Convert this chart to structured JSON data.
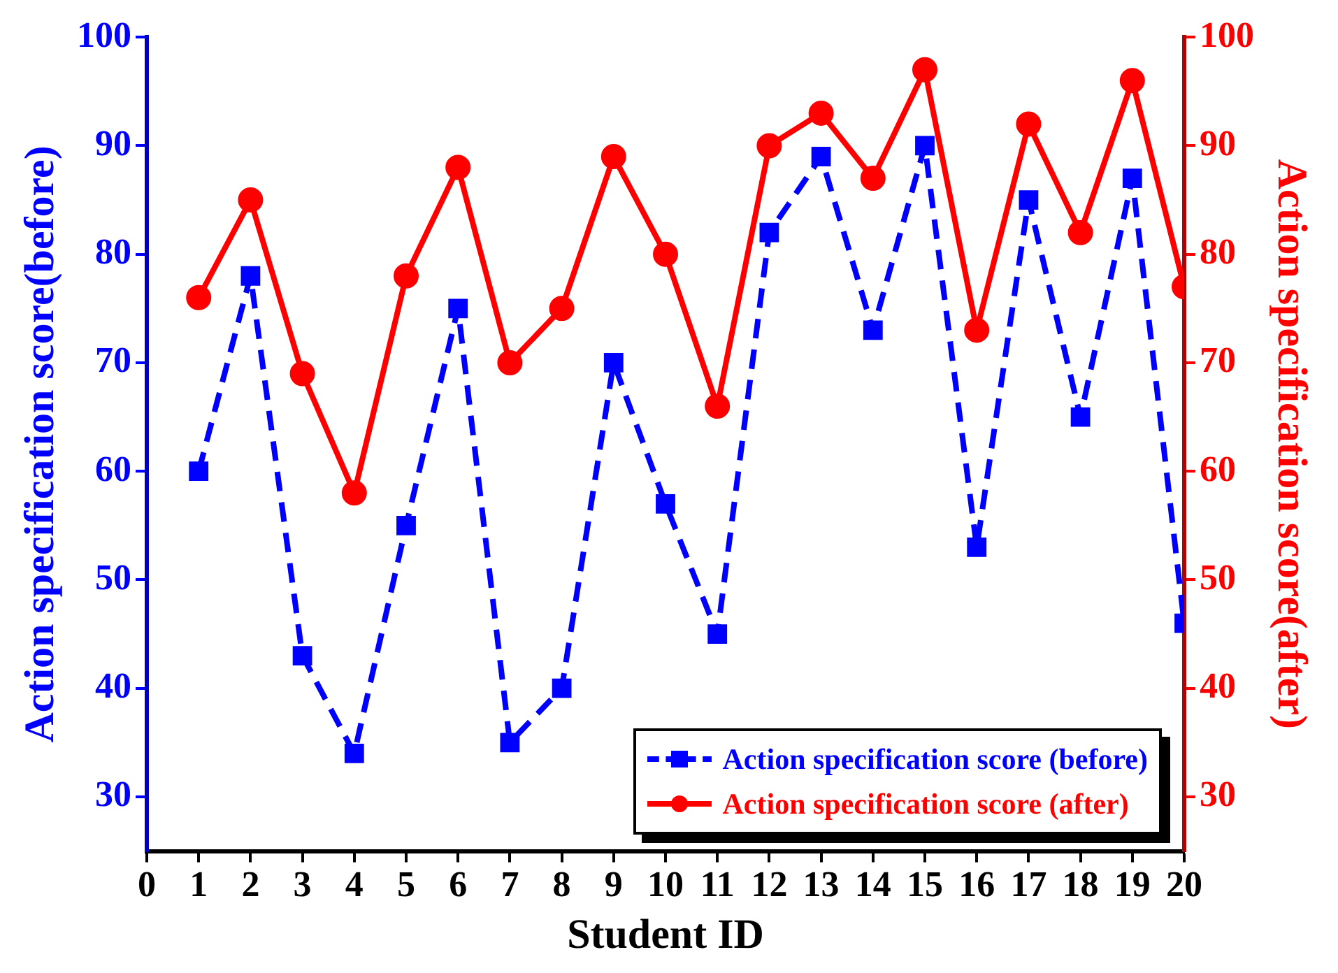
{
  "chart_data": {
    "type": "line",
    "xlabel": "Student ID",
    "ylabel": "Action specification score(before)",
    "y2label": "Action specification score(after)",
    "x": [
      1,
      2,
      3,
      4,
      5,
      6,
      7,
      8,
      9,
      10,
      11,
      12,
      13,
      14,
      15,
      16,
      17,
      18,
      19,
      20
    ],
    "xlim": [
      0,
      20
    ],
    "xticks": [
      0,
      1,
      2,
      3,
      4,
      5,
      6,
      7,
      8,
      9,
      10,
      11,
      12,
      13,
      14,
      15,
      16,
      17,
      18,
      19,
      20
    ],
    "ylim": [
      25,
      100
    ],
    "yticks": [
      30,
      40,
      50,
      60,
      70,
      80,
      90,
      100
    ],
    "y2lim": [
      25,
      100
    ],
    "y2ticks": [
      30,
      40,
      50,
      60,
      70,
      80,
      90,
      100
    ],
    "legend": "bottom right",
    "series": [
      {
        "name": "Action specification score (before)",
        "color": "#0000ff",
        "marker": "square",
        "line_style": "dashed",
        "values": [
          60,
          78,
          43,
          34,
          55,
          75,
          35,
          40,
          70,
          57,
          45,
          82,
          89,
          73,
          90,
          53,
          85,
          65,
          87,
          46
        ]
      },
      {
        "name": "Action specification score (after)",
        "color": "#ff0000",
        "marker": "circle",
        "line_style": "solid",
        "axis": "y2",
        "values": [
          76,
          85,
          69,
          58,
          78,
          88,
          70,
          75,
          89,
          80,
          66,
          90,
          93,
          87,
          97,
          73,
          92,
          82,
          96,
          77
        ]
      }
    ]
  }
}
